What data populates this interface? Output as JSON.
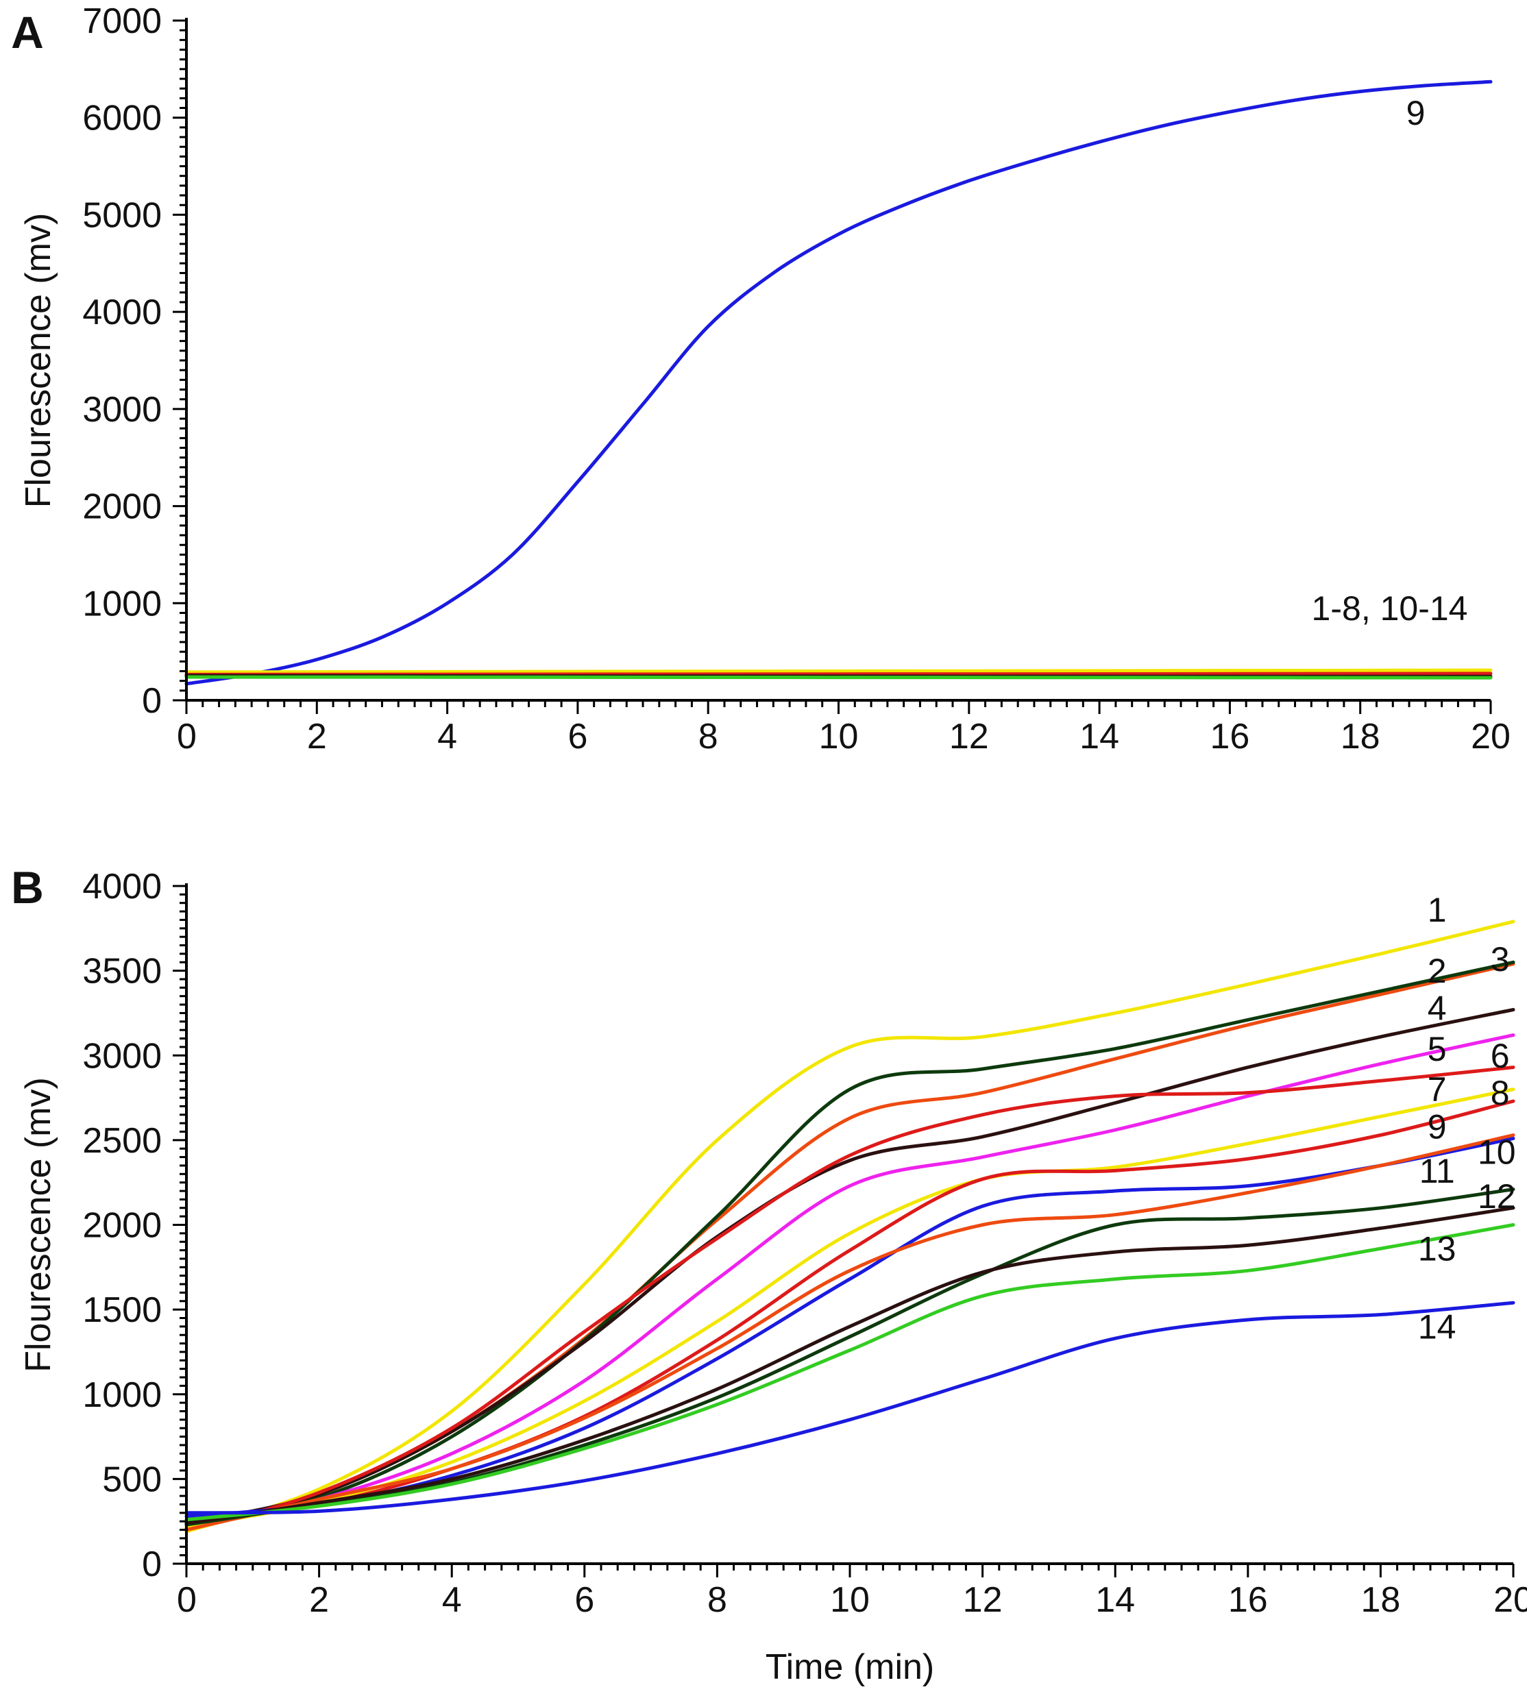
{
  "chart_data": [
    {
      "panel": "A",
      "type": "line",
      "xlabel": "",
      "ylabel": "Flourescence (mv)",
      "xlim": [
        0,
        20
      ],
      "ylim": [
        0,
        7000
      ],
      "xticks": [
        "0",
        "2",
        "4",
        "6",
        "8",
        "10",
        "12",
        "14",
        "16",
        "18",
        "20"
      ],
      "yticks": [
        "0",
        "1000",
        "2000",
        "3000",
        "4000",
        "5000",
        "6000",
        "7000"
      ],
      "series": [
        {
          "name": "9",
          "color": "#1a1adf",
          "x": [
            0,
            1,
            2,
            3,
            4,
            5,
            6,
            7,
            8,
            9,
            10,
            11,
            12,
            13,
            14,
            15,
            16,
            17,
            18,
            19,
            20
          ],
          "values": [
            170,
            270,
            420,
            650,
            1000,
            1500,
            2250,
            3050,
            3850,
            4400,
            4800,
            5100,
            5350,
            5560,
            5750,
            5920,
            6060,
            6180,
            6270,
            6330,
            6370
          ]
        },
        {
          "name": "1-8, 10-14 (yellow)",
          "color": "#f2e600",
          "x": [
            0,
            5,
            10,
            15,
            20
          ],
          "values": [
            290,
            295,
            300,
            305,
            310
          ]
        },
        {
          "name": "1-8, 10-14 (red)",
          "color": "#dd1a1a",
          "x": [
            0,
            5,
            10,
            15,
            20
          ],
          "values": [
            265,
            268,
            270,
            272,
            275
          ]
        },
        {
          "name": "1-8, 10-14 (dark)",
          "color": "#2a1010",
          "x": [
            0,
            5,
            10,
            15,
            20
          ],
          "values": [
            255,
            250,
            248,
            246,
            245
          ]
        },
        {
          "name": "1-8, 10-14 (green)",
          "color": "#33cc22",
          "x": [
            0,
            5,
            10,
            15,
            20
          ],
          "values": [
            240,
            238,
            236,
            234,
            232
          ]
        }
      ],
      "annotations": [
        {
          "text": "9",
          "x": 18.85,
          "y": 6050
        },
        {
          "text": "1-8, 10-14",
          "x": 18.45,
          "y": 950
        }
      ],
      "panel_label": "A"
    },
    {
      "panel": "B",
      "type": "line",
      "xlabel": "Time (min)",
      "ylabel": "Flourescence (mv)",
      "xlim": [
        0,
        20
      ],
      "ylim": [
        0,
        4000
      ],
      "xticks": [
        "0",
        "2",
        "4",
        "6",
        "8",
        "10",
        "12",
        "14",
        "16",
        "18",
        "20"
      ],
      "yticks": [
        "0",
        "500",
        "1000",
        "1500",
        "2000",
        "2500",
        "3000",
        "3500",
        "4000"
      ],
      "series": [
        {
          "name": "1",
          "color": "#f2e600",
          "x": [
            0,
            2,
            4,
            6,
            8,
            10,
            12,
            14,
            16,
            18,
            20
          ],
          "values": [
            190,
            440,
            900,
            1650,
            2500,
            3050,
            3110,
            3250,
            3420,
            3600,
            3790
          ]
        },
        {
          "name": "2",
          "color": "#ee4a10",
          "x": [
            0,
            2,
            4,
            6,
            8,
            10,
            12,
            14,
            16,
            18,
            20
          ],
          "values": [
            210,
            410,
            780,
            1330,
            2030,
            2630,
            2780,
            2980,
            3180,
            3360,
            3540
          ]
        },
        {
          "name": "3",
          "color": "#0d3a0d",
          "x": [
            0,
            2,
            4,
            6,
            8,
            10,
            12,
            14,
            16,
            18,
            20
          ],
          "values": [
            250,
            390,
            750,
            1320,
            2050,
            2800,
            2920,
            3040,
            3210,
            3380,
            3550
          ]
        },
        {
          "name": "4",
          "color": "#2a1010",
          "x": [
            0,
            2,
            4,
            6,
            8,
            10,
            12,
            14,
            16,
            18,
            20
          ],
          "values": [
            240,
            410,
            780,
            1310,
            1930,
            2380,
            2520,
            2720,
            2930,
            3110,
            3270
          ]
        },
        {
          "name": "5",
          "color": "#ee22ee",
          "x": [
            0,
            2,
            4,
            6,
            8,
            10,
            12,
            14,
            16,
            18,
            20
          ],
          "values": [
            230,
            380,
            650,
            1080,
            1680,
            2230,
            2400,
            2560,
            2760,
            2950,
            3120
          ]
        },
        {
          "name": "6",
          "color": "#dd1a1a",
          "x": [
            0,
            2,
            4,
            6,
            8,
            10,
            12,
            14,
            16,
            18,
            20
          ],
          "values": [
            200,
            420,
            800,
            1370,
            1920,
            2410,
            2650,
            2760,
            2780,
            2850,
            2930
          ]
        },
        {
          "name": "7",
          "color": "#f2e600",
          "x": [
            0,
            2,
            4,
            6,
            8,
            10,
            12,
            14,
            16,
            18,
            20
          ],
          "values": [
            220,
            360,
            600,
            960,
            1430,
            1950,
            2270,
            2340,
            2480,
            2640,
            2800
          ]
        },
        {
          "name": "8",
          "color": "#dd1a1a",
          "x": [
            0,
            2,
            4,
            6,
            8,
            10,
            12,
            14,
            16,
            18,
            20
          ],
          "values": [
            250,
            350,
            560,
            870,
            1320,
            1850,
            2270,
            2320,
            2390,
            2530,
            2730
          ]
        },
        {
          "name": "9",
          "color": "#1a1adf",
          "x": [
            0,
            2,
            4,
            6,
            8,
            10,
            12,
            14,
            16,
            18,
            20
          ],
          "values": [
            280,
            350,
            520,
            800,
            1210,
            1680,
            2110,
            2200,
            2230,
            2350,
            2510
          ]
        },
        {
          "name": "10",
          "color": "#ee4a10",
          "x": [
            0,
            2,
            4,
            6,
            8,
            10,
            12,
            14,
            16,
            18,
            20
          ],
          "values": [
            200,
            380,
            560,
            860,
            1270,
            1730,
            2000,
            2060,
            2190,
            2350,
            2530
          ]
        },
        {
          "name": "11",
          "color": "#0d3a0d",
          "x": [
            0,
            2,
            4,
            6,
            8,
            10,
            12,
            14,
            16,
            18,
            20
          ],
          "values": [
            230,
            350,
            480,
            700,
            980,
            1340,
            1710,
            2000,
            2040,
            2100,
            2210
          ]
        },
        {
          "name": "12",
          "color": "#2a1010",
          "x": [
            0,
            2,
            4,
            6,
            8,
            10,
            12,
            14,
            16,
            18,
            20
          ],
          "values": [
            240,
            360,
            500,
            730,
            1030,
            1400,
            1720,
            1840,
            1880,
            1980,
            2100
          ]
        },
        {
          "name": "13",
          "color": "#33cc22",
          "x": [
            0,
            2,
            4,
            6,
            8,
            10,
            12,
            14,
            16,
            18,
            20
          ],
          "values": [
            260,
            340,
            470,
            680,
            940,
            1260,
            1580,
            1680,
            1730,
            1860,
            2000
          ]
        },
        {
          "name": "14",
          "color": "#1a1adf",
          "x": [
            0,
            2,
            4,
            6,
            8,
            10,
            12,
            14,
            16,
            18,
            20
          ],
          "values": [
            300,
            310,
            380,
            490,
            650,
            850,
            1090,
            1330,
            1440,
            1470,
            1540
          ]
        }
      ],
      "annotations": [
        {
          "text": "1",
          "x": 18.85,
          "y": 3860
        },
        {
          "text": "2",
          "x": 18.85,
          "y": 3500
        },
        {
          "text": "3",
          "x": 19.8,
          "y": 3570
        },
        {
          "text": "4",
          "x": 18.85,
          "y": 3280
        },
        {
          "text": "5",
          "x": 18.85,
          "y": 3040
        },
        {
          "text": "6",
          "x": 19.8,
          "y": 3000
        },
        {
          "text": "7",
          "x": 18.85,
          "y": 2800
        },
        {
          "text": "8",
          "x": 19.8,
          "y": 2780
        },
        {
          "text": "9",
          "x": 18.85,
          "y": 2580
        },
        {
          "text": "10",
          "x": 19.75,
          "y": 2430
        },
        {
          "text": "11",
          "x": 18.85,
          "y": 2320
        },
        {
          "text": "12",
          "x": 19.75,
          "y": 2170
        },
        {
          "text": "13",
          "x": 18.85,
          "y": 1860
        },
        {
          "text": "14",
          "x": 18.85,
          "y": 1400
        }
      ],
      "panel_label": "B"
    }
  ]
}
